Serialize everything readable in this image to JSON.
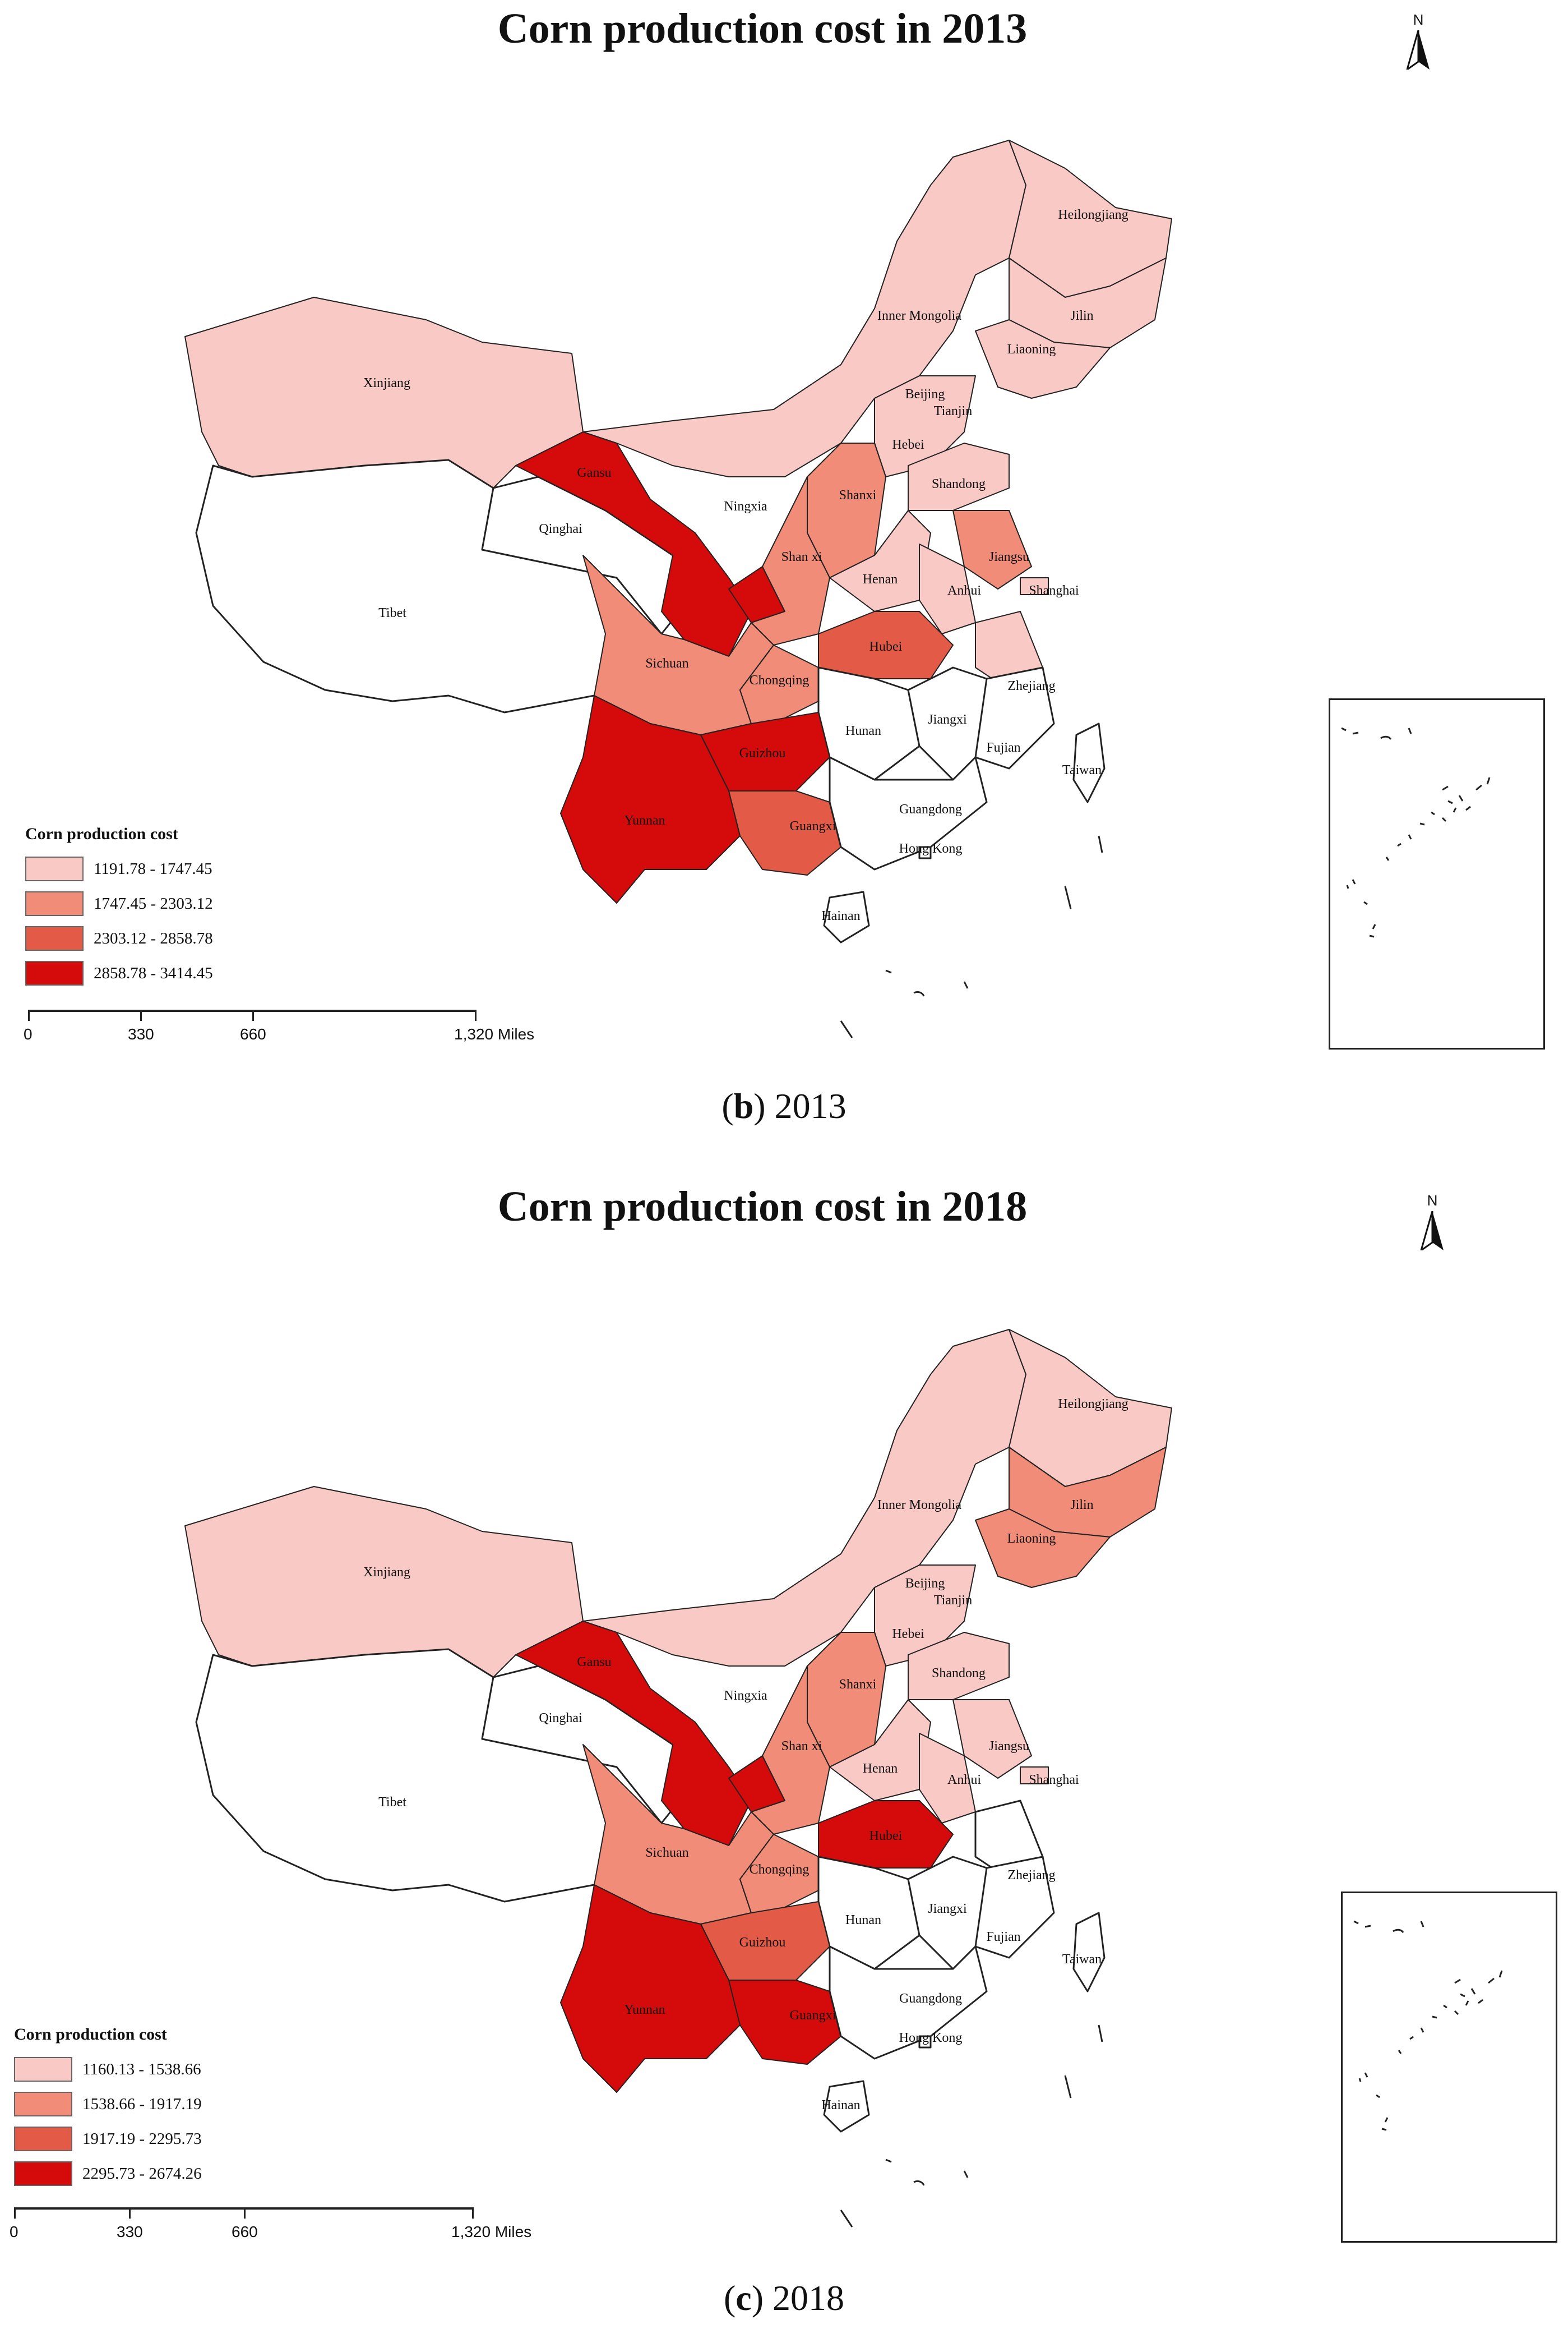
{
  "colors": {
    "class1": "#f9c9c5",
    "class2": "#f18c78",
    "class3": "#e35a46",
    "class4": "#d50a0a",
    "nodata": "#ffffff",
    "border": "#222222"
  },
  "north_label": "N",
  "scale": {
    "labels": [
      "0",
      "330",
      "660",
      "1,320 Miles"
    ]
  },
  "panels": [
    {
      "title": "Corn production cost in 2013",
      "caption_letter": "b",
      "caption_year": "2013",
      "legend": {
        "title": "Corn production cost",
        "classes": [
          "1191.78 - 1747.45",
          "1747.45 - 2303.12",
          "2303.12 - 2858.78",
          "2858.78 - 3414.45"
        ]
      },
      "provinces": {
        "Heilongjiang": 1,
        "Jilin": 1,
        "Liaoning": 1,
        "Inner Mongolia": 1,
        "Xinjiang": 1,
        "Beijing": 1,
        "Tianjin": 1,
        "Hebei": 1,
        "Shandong": 1,
        "Henan": 1,
        "Anhui": 1,
        "Zhejiang": 1,
        "Jiangxi": 0,
        "Shanxi": 2,
        "Shan xi": 2,
        "Jiangsu": 2,
        "Sichuan": 2,
        "Chongqing": 2,
        "Hubei": 3,
        "Guangxi": 3,
        "Gansu": 4,
        "Ningxia": 4,
        "Guizhou": 4,
        "Yunnan": 4,
        "Qinghai": 0,
        "Tibet": 0,
        "Hunan": 0,
        "Fujian": 0,
        "Guangdong": 0,
        "Hainan": 0,
        "Taiwan": 0,
        "Shanghai": 1,
        "Hong Kong": 0
      }
    },
    {
      "title": "Corn production cost in 2018",
      "caption_letter": "c",
      "caption_year": "2018",
      "legend": {
        "title": "Corn production cost",
        "classes": [
          "1160.13 - 1538.66",
          "1538.66 - 1917.19",
          "1917.19 - 2295.73",
          "2295.73 - 2674.26"
        ]
      },
      "provinces": {
        "Heilongjiang": 1,
        "Inner Mongolia": 1,
        "Xinjiang": 1,
        "Jilin": 2,
        "Liaoning": 2,
        "Beijing": 1,
        "Tianjin": 1,
        "Hebei": 1,
        "Shandong": 1,
        "Henan": 1,
        "Anhui": 1,
        "Jiangsu": 1,
        "Shanghai": 1,
        "Shanxi": 2,
        "Shan xi": 2,
        "Sichuan": 2,
        "Chongqing": 2,
        "Guizhou": 3,
        "Gansu": 4,
        "Ningxia": 4,
        "Hubei": 4,
        "Yunnan": 4,
        "Guangxi": 4,
        "Qinghai": 0,
        "Tibet": 0,
        "Hunan": 0,
        "Jiangxi": 0,
        "Fujian": 0,
        "Guangdong": 0,
        "Hainan": 0,
        "Taiwan": 0,
        "Zhejiang": 0,
        "Hong Kong": 0
      }
    }
  ],
  "labels": {
    "Heilongjiang": "Heilongjiang",
    "Jilin": "Jilin",
    "Liaoning": "Liaoning",
    "Inner Mongolia": "Inner Mongolia",
    "Xinjiang": "Xinjiang",
    "Gansu": "Gansu",
    "Qinghai": "Qinghai",
    "Tibet": "Tibet",
    "Ningxia": "Ningxia",
    "Beijing": "Beijing",
    "Tianjin": "Tianjin",
    "Hebei": "Hebei",
    "Shanxi": "Shanxi",
    "Shandong": "Shandong",
    "Shan xi": "Shan xi",
    "Henan": "Henan",
    "Jiangsu": "Jiangsu",
    "Anhui": "Anhui",
    "Shanghai": "Shanghai",
    "Hubei": "Hubei",
    "Sichuan": "Sichuan",
    "Chongqing": "Chongqing",
    "Zhejiang": "Zhejiang",
    "Hunan": "Hunan",
    "Jiangxi": "Jiangxi",
    "Fujian": "Fujian",
    "Guizhou": "Guizhou",
    "Yunnan": "Yunnan",
    "Guangxi": "Guangxi",
    "Guangdong": "Guangdong",
    "Hong Kong": "Hong Kong",
    "Taiwan": "Taiwan",
    "Hainan": "Hainan"
  }
}
